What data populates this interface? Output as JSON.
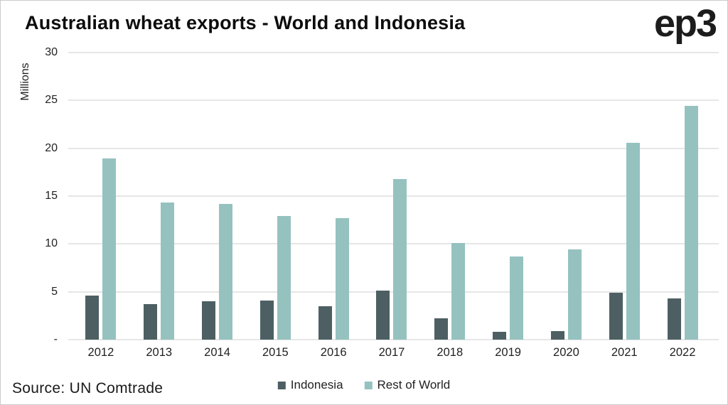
{
  "title": "Australian wheat exports - World and Indonesia",
  "logo_text": "ep3",
  "source": "Source: UN Comtrade",
  "colors": {
    "indonesia": "#4d5f63",
    "rest_of_world": "#95c2bf",
    "gridline": "#e6e6e6",
    "text": "#1a1a1a"
  },
  "chart_data": {
    "type": "bar",
    "title": "Australian wheat exports - World and Indonesia",
    "xlabel": "",
    "ylabel": "Millions",
    "ylim": [
      0,
      30
    ],
    "grid": true,
    "legend_position": "bottom",
    "categories": [
      "2012",
      "2013",
      "2014",
      "2015",
      "2016",
      "2017",
      "2018",
      "2019",
      "2020",
      "2021",
      "2022"
    ],
    "series": [
      {
        "name": "Indonesia",
        "color": "#4d5f63",
        "values": [
          4.6,
          3.7,
          4.0,
          4.1,
          3.5,
          5.1,
          2.2,
          0.8,
          0.9,
          4.9,
          4.3
        ]
      },
      {
        "name": "Rest of World",
        "color": "#95c2bf",
        "values": [
          18.9,
          14.3,
          14.2,
          12.9,
          12.7,
          16.8,
          10.1,
          8.7,
          9.4,
          20.6,
          24.4
        ]
      }
    ],
    "yticks": [
      30,
      25,
      20,
      15,
      10,
      5,
      0
    ],
    "ytick_labels": [
      "30",
      "25",
      "20",
      "15",
      "10",
      "5",
      "-"
    ]
  }
}
